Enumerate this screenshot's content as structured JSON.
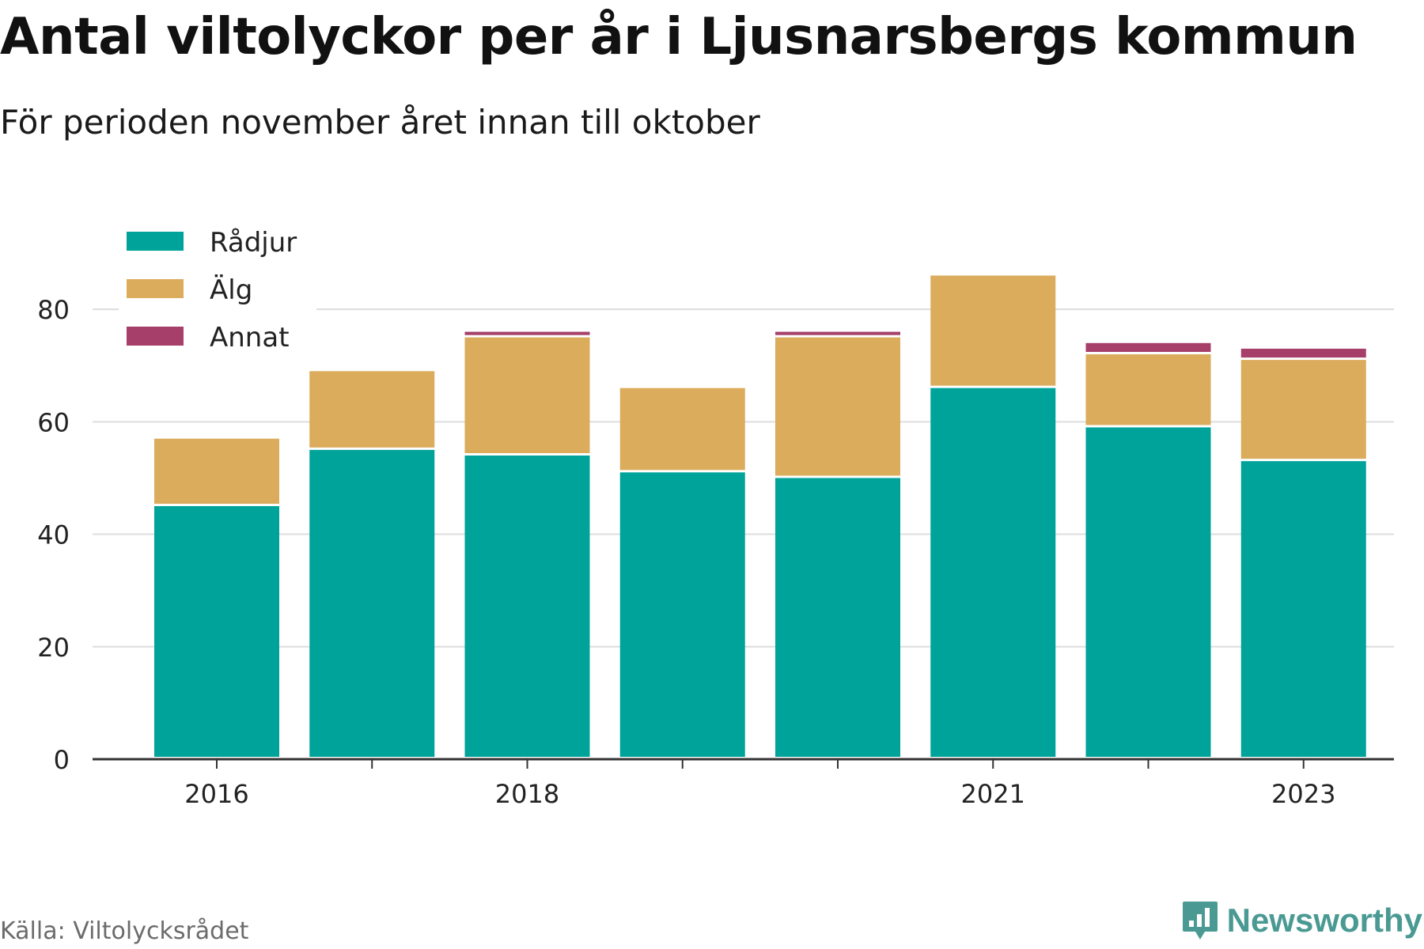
{
  "title": "Antal viltolyckor per år i Ljusnarsbergs kommun",
  "subtitle": "För perioden november året innan till oktober",
  "source": "Källa: Viltolycksrådet",
  "brand": "Newsworthy",
  "colors": {
    "series": [
      "#00a39a",
      "#dbac5c",
      "#a6406a"
    ],
    "grid": "#dddddd",
    "axis": "#333333",
    "text": "#222222",
    "brand": "#4a9a93"
  },
  "chart_data": {
    "type": "bar",
    "stacked": true,
    "categories": [
      "2016",
      "2017",
      "2018",
      "2019",
      "2020",
      "2021",
      "2022",
      "2023"
    ],
    "tick_labels": [
      "2016",
      "",
      "2018",
      "",
      "",
      "2021",
      "",
      "2023"
    ],
    "series": [
      {
        "name": "Rådjur",
        "values": [
          45,
          55,
          54,
          51,
          50,
          66,
          59,
          53
        ]
      },
      {
        "name": "Älg",
        "values": [
          12,
          14,
          21,
          15,
          25,
          20,
          13,
          18
        ]
      },
      {
        "name": "Annat",
        "values": [
          0,
          0,
          1,
          0,
          1,
          0,
          2,
          2
        ]
      }
    ],
    "ylim": [
      0,
      90
    ],
    "yticks": [
      0,
      20,
      40,
      60,
      80
    ],
    "grid": true,
    "legend_position": "top-left",
    "xlabel": "",
    "ylabel": ""
  }
}
